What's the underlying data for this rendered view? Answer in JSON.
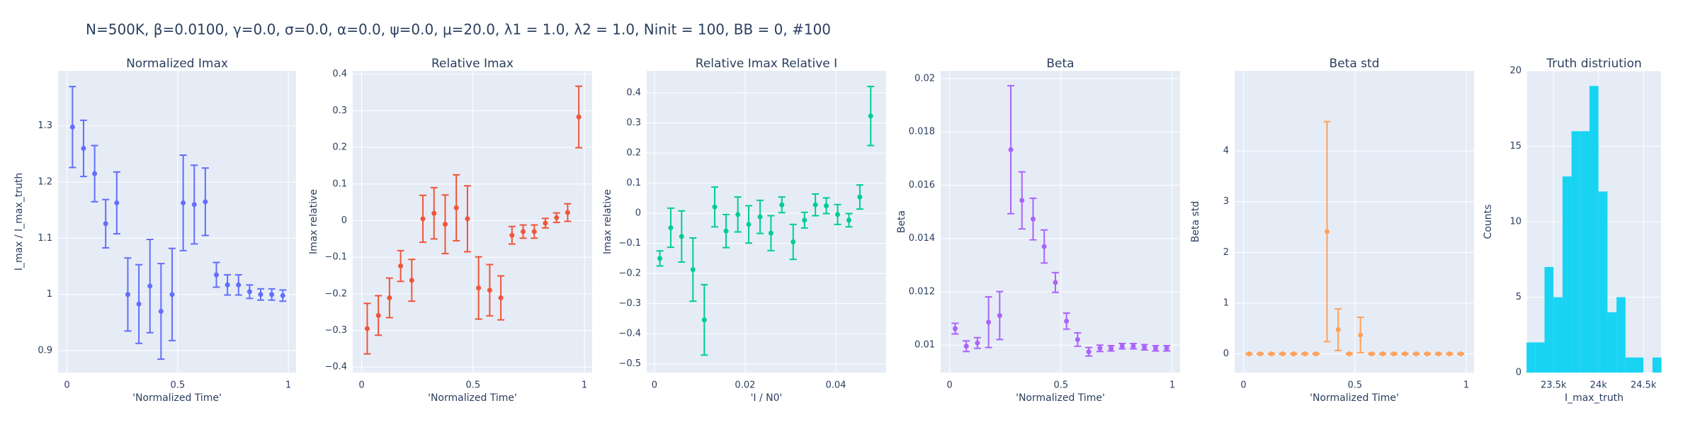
{
  "title": "N=500K, β=0.0100, γ=0.0, σ=0.0,  α=0.0, ψ=0.0, μ=20.0, λ1 = 1.0, λ2 = 1.0, Ninit = 100, BB = 0, #100",
  "chart_data": [
    {
      "type": "scatter",
      "title": "Normalized Imax",
      "x_label": "'Normalized Time'",
      "y_label": "I_max / I_max_truth",
      "color": "#636efa",
      "x": [
        0.025,
        0.075,
        0.125,
        0.175,
        0.225,
        0.275,
        0.325,
        0.375,
        0.425,
        0.475,
        0.525,
        0.575,
        0.625,
        0.675,
        0.725,
        0.775,
        0.825,
        0.875,
        0.925,
        0.975
      ],
      "values": [
        1.298,
        1.26,
        1.215,
        1.126,
        1.163,
        1.0,
        0.983,
        1.015,
        0.97,
        1.0,
        1.163,
        1.16,
        1.165,
        1.035,
        1.017,
        1.017,
        1.005,
        1.0,
        1.0,
        0.998
      ],
      "errors": [
        0.072,
        0.05,
        0.05,
        0.043,
        0.055,
        0.065,
        0.07,
        0.083,
        0.085,
        0.082,
        0.085,
        0.07,
        0.06,
        0.022,
        0.018,
        0.018,
        0.012,
        0.01,
        0.01,
        0.01
      ],
      "xlim": [
        -0.04,
        1.035
      ],
      "xticks": [
        0,
        0.5,
        1
      ],
      "ylim": [
        0.861,
        1.398
      ],
      "yticks": [
        0.9,
        1,
        1.1,
        1.2,
        1.3
      ],
      "grid": true
    },
    {
      "type": "scatter",
      "title": "Relative Imax",
      "x_label": "'Normalized Time'",
      "y_label": "Imax relative",
      "color": "#EF553B",
      "x": [
        0.025,
        0.075,
        0.125,
        0.175,
        0.225,
        0.275,
        0.325,
        0.375,
        0.425,
        0.475,
        0.525,
        0.575,
        0.625,
        0.675,
        0.725,
        0.775,
        0.825,
        0.875,
        0.925,
        0.975
      ],
      "values": [
        -0.295,
        -0.259,
        -0.211,
        -0.124,
        -0.163,
        0.005,
        0.02,
        -0.01,
        0.035,
        0.005,
        -0.184,
        -0.19,
        -0.211,
        -0.04,
        -0.03,
        -0.03,
        -0.007,
        0.008,
        0.022,
        0.283
      ],
      "errors": [
        0.069,
        0.054,
        0.054,
        0.042,
        0.057,
        0.064,
        0.07,
        0.08,
        0.09,
        0.09,
        0.085,
        0.07,
        0.06,
        0.024,
        0.018,
        0.018,
        0.013,
        0.013,
        0.024,
        0.084
      ],
      "xlim": [
        -0.04,
        1.035
      ],
      "xticks": [
        0,
        0.5,
        1
      ],
      "ylim": [
        -0.415,
        0.409
      ],
      "yticks": [
        {
          "value": -0.4,
          "label": "−0.4"
        },
        {
          "value": -0.3,
          "label": "−0.3"
        },
        {
          "value": -0.2,
          "label": "−0.2"
        },
        {
          "value": -0.1,
          "label": "−0.1"
        },
        0,
        0.1,
        0.2,
        0.3,
        0.4
      ],
      "grid": true
    },
    {
      "type": "scatter",
      "title": "Relative Imax Relative I",
      "x_label": "'I / N0'",
      "y_label": "Imax relative",
      "color": "#00cc96",
      "x": [
        0.0012,
        0.0036,
        0.006,
        0.0085,
        0.011,
        0.0133,
        0.0158,
        0.0184,
        0.0208,
        0.0233,
        0.0257,
        0.0281,
        0.0306,
        0.0331,
        0.0355,
        0.0379,
        0.0404,
        0.0429,
        0.0453,
        0.0477
      ],
      "values": [
        -0.15,
        -0.048,
        -0.077,
        -0.187,
        -0.354,
        0.021,
        -0.059,
        -0.004,
        -0.037,
        -0.012,
        -0.066,
        0.028,
        -0.095,
        -0.023,
        0.028,
        0.025,
        -0.004,
        -0.023,
        0.054,
        0.323
      ],
      "errors": [
        0.025,
        0.065,
        0.085,
        0.105,
        0.117,
        0.066,
        0.055,
        0.058,
        0.062,
        0.055,
        0.058,
        0.026,
        0.058,
        0.026,
        0.036,
        0.026,
        0.033,
        0.022,
        0.04,
        0.098
      ],
      "xlim": [
        -0.0017,
        0.0511
      ],
      "xticks": [
        0,
        0.02,
        0.04
      ],
      "ylim": [
        -0.529,
        0.473
      ],
      "yticks": [
        {
          "value": -0.5,
          "label": "−0.5"
        },
        {
          "value": -0.4,
          "label": "−0.4"
        },
        {
          "value": -0.3,
          "label": "−0.3"
        },
        {
          "value": -0.2,
          "label": "−0.2"
        },
        {
          "value": -0.1,
          "label": "−0.1"
        },
        0,
        0.1,
        0.2,
        0.3,
        0.4
      ],
      "grid": true
    },
    {
      "type": "scatter",
      "title": "Beta",
      "x_label": "'Normalized Time'",
      "y_label": "Beta",
      "color": "#ab63fa",
      "x": [
        0.025,
        0.075,
        0.125,
        0.175,
        0.225,
        0.275,
        0.325,
        0.375,
        0.425,
        0.475,
        0.525,
        0.575,
        0.625,
        0.675,
        0.725,
        0.775,
        0.825,
        0.875,
        0.925,
        0.975
      ],
      "values": [
        0.01062,
        0.00996,
        0.01008,
        0.01086,
        0.01111,
        0.01733,
        0.01543,
        0.01473,
        0.0137,
        0.01235,
        0.0109,
        0.01021,
        0.00975,
        0.00988,
        0.00988,
        0.00996,
        0.00996,
        0.00992,
        0.00988,
        0.00988
      ],
      "errors": [
        0.0002,
        0.0002,
        0.0002,
        0.00095,
        0.0009,
        0.0024,
        0.00107,
        0.00078,
        0.00062,
        0.00037,
        0.0003,
        0.00025,
        0.00016,
        0.00012,
        0.0001,
        0.0001,
        0.0001,
        0.0001,
        0.0001,
        0.0001
      ],
      "xlim": [
        -0.04,
        1.035
      ],
      "xticks": [
        0,
        0.5,
        1
      ],
      "ylim": [
        0.00897,
        0.02029
      ],
      "yticks": [
        0.01,
        0.012,
        0.014,
        0.016,
        0.018,
        0.02
      ],
      "grid": true
    },
    {
      "type": "scatter",
      "title": "Beta std",
      "x_label": "'Normalized Time'",
      "y_label": "Beta std",
      "color": "#FFA15A",
      "x": [
        0.025,
        0.075,
        0.125,
        0.175,
        0.225,
        0.275,
        0.325,
        0.375,
        0.425,
        0.475,
        0.525,
        0.575,
        0.625,
        0.675,
        0.725,
        0.775,
        0.825,
        0.875,
        0.925,
        0.975
      ],
      "values": [
        0,
        0,
        0,
        0,
        0,
        0,
        0,
        2.41,
        0.476,
        0,
        0.37,
        0,
        0,
        0,
        0,
        0,
        0,
        0,
        0,
        0
      ],
      "errors": [
        0.01,
        0.01,
        0.01,
        0.01,
        0.01,
        0.01,
        0.01,
        2.17,
        0.41,
        0.01,
        0.35,
        0.01,
        0.01,
        0.01,
        0.01,
        0.01,
        0.01,
        0.01,
        0.01,
        0.01
      ],
      "xlim": [
        -0.04,
        1.035
      ],
      "xticks": [
        0,
        0.5,
        1
      ],
      "ylim": [
        -0.37,
        5.58
      ],
      "yticks": [
        0,
        1,
        2,
        3,
        4
      ],
      "grid": true
    },
    {
      "type": "histogram",
      "title": "Truth distriution",
      "x_label": "I_max_truth",
      "y_label": "Counts",
      "color": "#19d3f3",
      "bins": [
        23200,
        23300,
        23400,
        23500,
        23600,
        23700,
        23800,
        23900,
        24000,
        24100,
        24200,
        24300,
        24400,
        24500,
        24600,
        24700
      ],
      "counts": [
        2,
        2,
        7,
        5,
        13,
        16,
        16,
        19,
        12,
        4,
        5,
        1,
        1,
        0,
        1
      ],
      "xlim": [
        23207,
        24695
      ],
      "xticks": [
        {
          "value": 23500,
          "label": "23.5k"
        },
        {
          "value": 24000,
          "label": "24k"
        },
        {
          "value": 24500,
          "label": "24.5k"
        }
      ],
      "ylim": [
        0,
        20
      ],
      "yticks": [
        0,
        5,
        10,
        15,
        20
      ],
      "grid": true
    }
  ]
}
